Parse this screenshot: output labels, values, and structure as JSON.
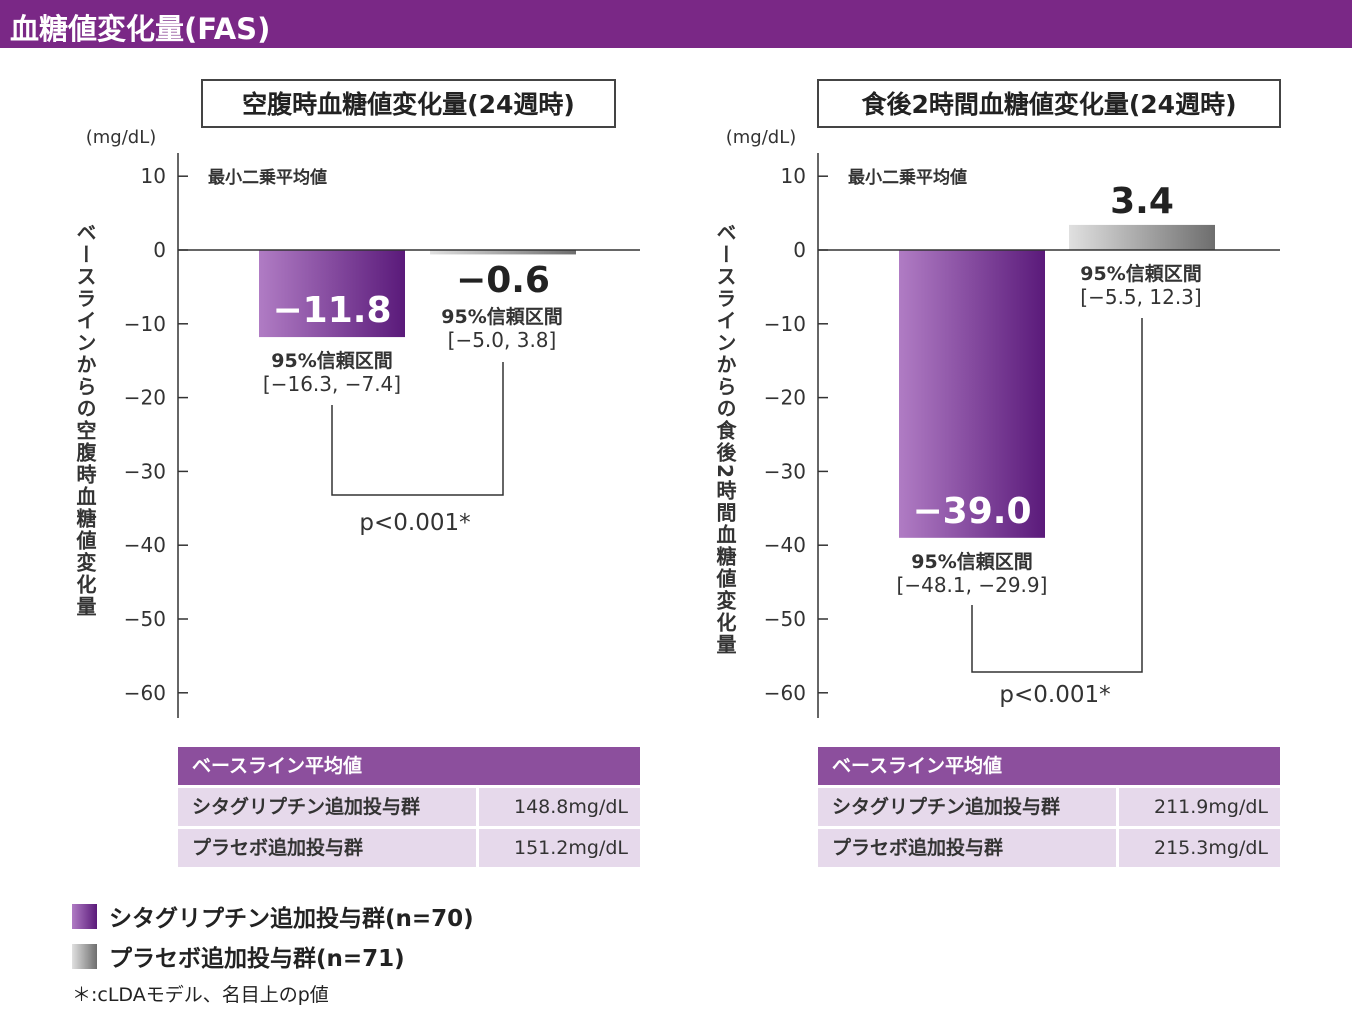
{
  "header": {
    "title": "血糖値変化量(FAS)"
  },
  "colors": {
    "header": "#7a2886",
    "sitagliptin_light": "#b07cc4",
    "sitagliptin_dark": "#5a1a7a",
    "placebo_light": "#e0e0e0",
    "placebo_dark": "#6e6e6e",
    "table_header": "#8c4f9d",
    "table_cell": "#e6d9eb"
  },
  "chart_data": [
    {
      "type": "bar",
      "title": "空腹時血糖値変化量(24週時)",
      "unit": "(mg/dL)",
      "ylabel": "ベースラインからの空腹時血糖値変化量",
      "annotation": "最小二乗平均値",
      "ylim": [
        -60,
        10
      ],
      "yticks": [
        10,
        0,
        -10,
        -20,
        -30,
        -40,
        -50,
        -60
      ],
      "ytick_labels": [
        "10",
        "0",
        "−10",
        "−20",
        "−30",
        "−40",
        "−50",
        "−60"
      ],
      "series": [
        {
          "name": "シタグリプチン追加投与群",
          "value": -11.8,
          "label": "−11.8",
          "ci_title": "95%信頼区間",
          "ci": "[−16.3, −7.4]"
        },
        {
          "name": "プラセボ追加投与群",
          "value": -0.6,
          "label": "−0.6",
          "ci_title": "95%信頼区間",
          "ci": "[−5.0, 3.8]"
        }
      ],
      "p_value": "p<0.001*",
      "baseline": {
        "header": "ベースライン平均値",
        "rows": [
          {
            "group": "シタグリプチン追加投与群",
            "value": "148.8mg/dL"
          },
          {
            "group": "プラセボ追加投与群",
            "value": "151.2mg/dL"
          }
        ]
      }
    },
    {
      "type": "bar",
      "title": "食後2時間血糖値変化量(24週時)",
      "unit": "(mg/dL)",
      "ylabel": "ベースラインからの食後2時間血糖値変化量",
      "annotation": "最小二乗平均値",
      "ylim": [
        -60,
        10
      ],
      "yticks": [
        10,
        0,
        -10,
        -20,
        -30,
        -40,
        -50,
        -60
      ],
      "ytick_labels": [
        "10",
        "0",
        "−10",
        "−20",
        "−30",
        "−40",
        "−50",
        "−60"
      ],
      "series": [
        {
          "name": "シタグリプチン追加投与群",
          "value": -39.0,
          "label": "−39.0",
          "ci_title": "95%信頼区間",
          "ci": "[−48.1, −29.9]"
        },
        {
          "name": "プラセボ追加投与群",
          "value": 3.4,
          "label": "3.4",
          "ci_title": "95%信頼区間",
          "ci": "[−5.5, 12.3]"
        }
      ],
      "p_value": "p<0.001*",
      "baseline": {
        "header": "ベースライン平均値",
        "rows": [
          {
            "group": "シタグリプチン追加投与群",
            "value": "211.9mg/dL"
          },
          {
            "group": "プラセボ追加投与群",
            "value": "215.3mg/dL"
          }
        ]
      }
    }
  ],
  "legend": [
    {
      "label": "シタグリプチン追加投与群(n=70)"
    },
    {
      "label": "プラセボ追加投与群(n=71)"
    }
  ],
  "footnote": "＊:cLDAモデル、名目上のp値"
}
